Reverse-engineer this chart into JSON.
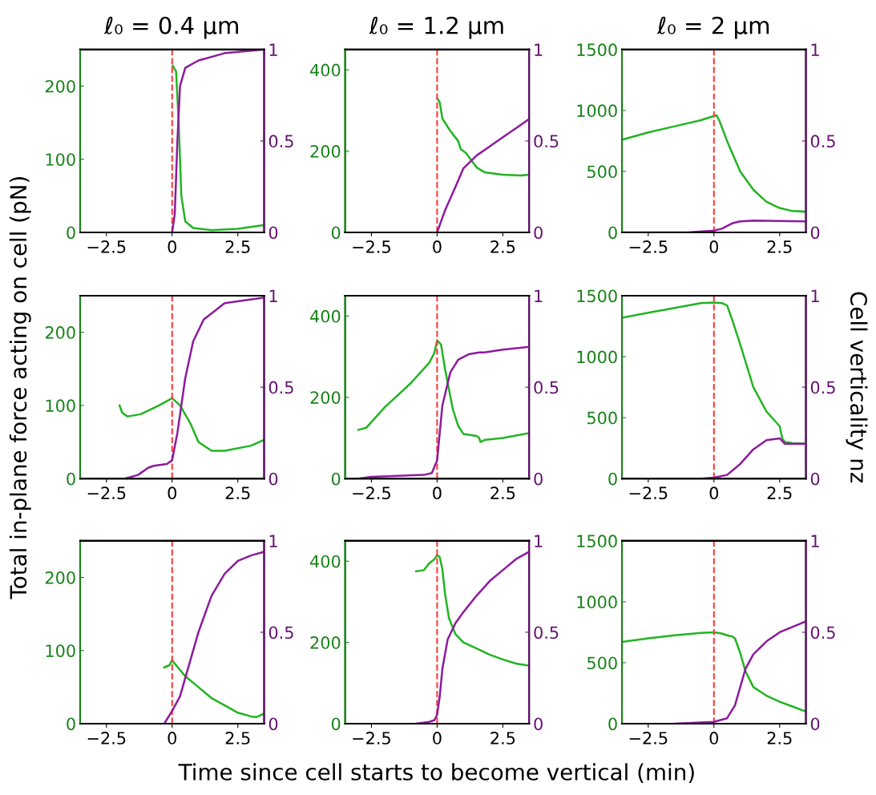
{
  "chart_data": [
    {
      "type": "line",
      "title": "ℓ₀ = 0.4 μm",
      "xlim": [
        -3.5,
        3.5
      ],
      "xticks": [
        -2.5,
        0,
        2.5
      ],
      "ylim": [
        0,
        250
      ],
      "yticks": [
        0,
        100,
        200
      ],
      "y2lim": [
        0,
        1
      ],
      "y2ticks": [
        0,
        0.5,
        1
      ],
      "ref_lines": [
        {
          "axis": "x",
          "value": 0,
          "color": "#ff3b3b",
          "line_style": "dashed"
        }
      ],
      "series": [
        {
          "color": "#22b422",
          "x": [
            0.02,
            0.15,
            0.25,
            0.35,
            0.5,
            0.8,
            1.5,
            2.5,
            3.5
          ],
          "values": [
            228,
            220,
            150,
            50,
            15,
            6,
            3,
            5,
            10
          ]
        },
        {
          "color": "#8e1a9e",
          "axis": "y2",
          "x": [
            0,
            0.1,
            0.2,
            0.3,
            0.5,
            1,
            2,
            3.5
          ],
          "values": [
            0,
            0.1,
            0.5,
            0.8,
            0.9,
            0.94,
            0.98,
            1.0
          ]
        }
      ]
    },
    {
      "type": "line",
      "title": "ℓ₀ = 1.2 μm",
      "xlim": [
        -3.5,
        3.5
      ],
      "xticks": [
        -2.5,
        0,
        2.5
      ],
      "ylim": [
        0,
        450
      ],
      "yticks": [
        0,
        200,
        400
      ],
      "y2lim": [
        0,
        1
      ],
      "y2ticks": [
        0,
        0.5,
        1
      ],
      "ref_lines": [
        {
          "axis": "x",
          "value": 0,
          "color": "#ff3b3b",
          "line_style": "dashed"
        }
      ],
      "series": [
        {
          "color": "#22b422",
          "x": [
            0,
            0.1,
            0.2,
            0.5,
            0.8,
            0.9,
            1.1,
            1.5,
            1.8,
            2.5,
            3.2,
            3.5
          ],
          "values": [
            330,
            320,
            280,
            250,
            225,
            205,
            195,
            160,
            148,
            142,
            140,
            142
          ]
        },
        {
          "color": "#8e1a9e",
          "axis": "y2",
          "x": [
            0,
            0.3,
            0.7,
            1.0,
            1.5,
            2.0,
            2.5,
            3.0,
            3.5
          ],
          "values": [
            0,
            0.12,
            0.25,
            0.35,
            0.42,
            0.47,
            0.52,
            0.57,
            0.62
          ]
        }
      ]
    },
    {
      "type": "line",
      "title": "ℓ₀ = 2 μm",
      "xlim": [
        -3.5,
        3.5
      ],
      "xticks": [
        -2.5,
        0,
        2.5
      ],
      "ylim": [
        0,
        1500
      ],
      "yticks": [
        0,
        500,
        1000,
        1500
      ],
      "y2lim": [
        0,
        1
      ],
      "y2ticks": [
        0,
        0.5,
        1
      ],
      "ref_lines": [
        {
          "axis": "x",
          "value": 0,
          "color": "#ff3b3b",
          "line_style": "dashed"
        }
      ],
      "series": [
        {
          "color": "#22b422",
          "x": [
            -3.5,
            -2.5,
            -1.5,
            -0.5,
            0,
            0.1,
            0.2,
            0.5,
            1.0,
            1.5,
            2.0,
            2.5,
            3.0,
            3.5
          ],
          "values": [
            760,
            820,
            870,
            920,
            955,
            960,
            920,
            750,
            500,
            350,
            250,
            200,
            175,
            170
          ]
        },
        {
          "color": "#8e1a9e",
          "axis": "y2",
          "x": [
            -3.5,
            -1,
            0,
            0.3,
            0.7,
            1.0,
            1.5,
            3.5
          ],
          "values": [
            0,
            0,
            0.01,
            0.02,
            0.05,
            0.06,
            0.065,
            0.06
          ]
        }
      ]
    },
    {
      "type": "line",
      "ylabel": "Total in-plane force acting on cell (pN)",
      "xlim": [
        -3.5,
        3.5
      ],
      "xticks": [
        -2.5,
        0,
        2.5
      ],
      "ylim": [
        0,
        250
      ],
      "yticks": [
        0,
        100,
        200
      ],
      "y2lim": [
        0,
        1
      ],
      "y2ticks": [
        0,
        0.5,
        1
      ],
      "ref_lines": [
        {
          "axis": "x",
          "value": 0,
          "color": "#ff3b3b",
          "line_style": "dashed"
        }
      ],
      "series": [
        {
          "color": "#22b422",
          "x": [
            -2.0,
            -1.9,
            -1.7,
            -1.2,
            -0.5,
            0,
            0.3,
            0.7,
            1.0,
            1.5,
            2.0,
            3.0,
            3.5
          ],
          "values": [
            100,
            90,
            85,
            88,
            100,
            110,
            100,
            75,
            50,
            38,
            38,
            45,
            53
          ]
        },
        {
          "color": "#8e1a9e",
          "axis": "y2",
          "x": [
            -1.8,
            -1.3,
            -0.9,
            -0.7,
            -0.2,
            0,
            0.2,
            0.5,
            0.8,
            1.2,
            2,
            3.5
          ],
          "values": [
            0,
            0.02,
            0.06,
            0.07,
            0.08,
            0.1,
            0.25,
            0.55,
            0.75,
            0.87,
            0.96,
            0.99
          ]
        }
      ]
    },
    {
      "type": "line",
      "xlim": [
        -3.5,
        3.5
      ],
      "xticks": [
        -2.5,
        0,
        2.5
      ],
      "ylim": [
        0,
        450
      ],
      "yticks": [
        0,
        200,
        400
      ],
      "y2lim": [
        0,
        1
      ],
      "y2ticks": [
        0,
        0.5,
        1
      ],
      "ref_lines": [
        {
          "axis": "x",
          "value": 0,
          "color": "#ff3b3b",
          "line_style": "dashed"
        }
      ],
      "series": [
        {
          "color": "#22b422",
          "x": [
            -3,
            -2.7,
            -2,
            -1,
            -0.3,
            -0.1,
            0,
            0.15,
            0.3,
            0.6,
            0.8,
            1.0,
            1.5,
            1.6,
            1.65,
            1.8,
            2.5,
            3.5
          ],
          "values": [
            120,
            125,
            175,
            235,
            285,
            310,
            340,
            330,
            270,
            170,
            130,
            110,
            105,
            100,
            90,
            95,
            100,
            112
          ]
        },
        {
          "color": "#8e1a9e",
          "axis": "y2",
          "x": [
            -3,
            -2.5,
            -0.5,
            -0.2,
            0,
            0.2,
            0.5,
            0.8,
            1.2,
            1.6,
            1.8,
            2.5,
            3.5
          ],
          "values": [
            0,
            0.01,
            0.02,
            0.03,
            0.1,
            0.4,
            0.58,
            0.65,
            0.68,
            0.69,
            0.69,
            0.705,
            0.72
          ]
        }
      ]
    },
    {
      "type": "line",
      "y2label": "Cell verticality nz",
      "xlim": [
        -3.5,
        3.5
      ],
      "xticks": [
        -2.5,
        0,
        2.5
      ],
      "ylim": [
        0,
        1500
      ],
      "yticks": [
        0,
        500,
        1000,
        1500
      ],
      "y2lim": [
        0,
        1
      ],
      "y2ticks": [
        0,
        0.5,
        1
      ],
      "ref_lines": [
        {
          "axis": "x",
          "value": 0,
          "color": "#ff3b3b",
          "line_style": "dashed"
        }
      ],
      "series": [
        {
          "color": "#22b422",
          "x": [
            -3.5,
            -2.5,
            -1.5,
            -0.5,
            0,
            0.3,
            0.5,
            0.7,
            1.0,
            1.5,
            2.0,
            2.5,
            2.6,
            2.7,
            3.0,
            3.5
          ],
          "values": [
            1320,
            1360,
            1400,
            1440,
            1445,
            1440,
            1420,
            1300,
            1100,
            750,
            550,
            430,
            330,
            300,
            290,
            285
          ]
        },
        {
          "color": "#8e1a9e",
          "axis": "y2",
          "x": [
            -0.5,
            0,
            0.5,
            1.0,
            1.5,
            2.0,
            2.5,
            2.7,
            3.0,
            3.5
          ],
          "values": [
            0,
            0.005,
            0.02,
            0.08,
            0.16,
            0.21,
            0.22,
            0.19,
            0.19,
            0.19
          ]
        }
      ]
    },
    {
      "type": "line",
      "xlim": [
        -3.5,
        3.5
      ],
      "xticks": [
        -2.5,
        0,
        2.5
      ],
      "ylim": [
        0,
        250
      ],
      "yticks": [
        0,
        100,
        200
      ],
      "y2lim": [
        0,
        1
      ],
      "y2ticks": [
        0,
        0.5,
        1
      ],
      "ref_lines": [
        {
          "axis": "x",
          "value": 0,
          "color": "#ff3b3b",
          "line_style": "dashed"
        }
      ],
      "series": [
        {
          "color": "#22b422",
          "x": [
            -0.3,
            -0.1,
            0,
            0.1,
            0.5,
            1,
            1.5,
            2,
            2.5,
            3.0,
            3.2,
            3.5
          ],
          "values": [
            77,
            80,
            87,
            82,
            65,
            50,
            35,
            25,
            15,
            10,
            9,
            14
          ]
        },
        {
          "color": "#8e1a9e",
          "axis": "y2",
          "x": [
            -0.3,
            0,
            0.3,
            0.7,
            1.0,
            1.5,
            2.0,
            2.5,
            3.0,
            3.5
          ],
          "values": [
            0,
            0.07,
            0.15,
            0.35,
            0.5,
            0.7,
            0.82,
            0.89,
            0.92,
            0.94
          ]
        }
      ]
    },
    {
      "type": "line",
      "xlabel": "Time since cell starts to become vertical (min)",
      "xlim": [
        -3.5,
        3.5
      ],
      "xticks": [
        -2.5,
        0,
        2.5
      ],
      "ylim": [
        0,
        450
      ],
      "yticks": [
        0,
        200,
        400
      ],
      "y2lim": [
        0,
        1
      ],
      "y2ticks": [
        0,
        0.5,
        1
      ],
      "ref_lines": [
        {
          "axis": "x",
          "value": 0,
          "color": "#ff3b3b",
          "line_style": "dashed"
        }
      ],
      "series": [
        {
          "color": "#22b422",
          "x": [
            -0.8,
            -0.5,
            -0.3,
            -0.1,
            0,
            0.1,
            0.2,
            0.3,
            0.45,
            0.7,
            1.0,
            1.5,
            2.0,
            2.5,
            3.0,
            3.5
          ],
          "values": [
            375,
            378,
            395,
            405,
            415,
            410,
            380,
            320,
            260,
            220,
            200,
            185,
            170,
            158,
            148,
            143
          ]
        },
        {
          "color": "#8e1a9e",
          "axis": "y2",
          "x": [
            -0.8,
            -0.3,
            -0.1,
            0,
            0.1,
            0.2,
            0.4,
            0.7,
            1.0,
            1.5,
            2.0,
            2.5,
            3.0,
            3.5
          ],
          "values": [
            0,
            0.01,
            0.02,
            0.05,
            0.15,
            0.3,
            0.46,
            0.55,
            0.61,
            0.7,
            0.78,
            0.84,
            0.9,
            0.94
          ]
        }
      ]
    },
    {
      "type": "line",
      "xlim": [
        -3.5,
        3.5
      ],
      "xticks": [
        -2.5,
        0,
        2.5
      ],
      "ylim": [
        0,
        1500
      ],
      "yticks": [
        0,
        500,
        1000,
        1500
      ],
      "y2lim": [
        0,
        1
      ],
      "y2ticks": [
        0,
        0.5,
        1
      ],
      "ref_lines": [
        {
          "axis": "x",
          "value": 0,
          "color": "#ff3b3b",
          "line_style": "dashed"
        }
      ],
      "series": [
        {
          "color": "#22b422",
          "x": [
            -3.5,
            -2.5,
            -1.5,
            -0.5,
            0,
            0.3,
            0.5,
            0.7,
            0.8,
            1.0,
            1.2,
            1.5,
            2.0,
            2.5,
            3.0,
            3.5
          ],
          "values": [
            670,
            700,
            725,
            745,
            750,
            740,
            725,
            715,
            700,
            580,
            430,
            300,
            230,
            180,
            140,
            100
          ]
        },
        {
          "color": "#8e1a9e",
          "axis": "y2",
          "x": [
            -1.5,
            0,
            0.5,
            0.8,
            1.0,
            1.2,
            1.5,
            2.0,
            2.5,
            3.0,
            3.5
          ],
          "values": [
            0,
            0.01,
            0.03,
            0.1,
            0.2,
            0.3,
            0.38,
            0.45,
            0.5,
            0.53,
            0.56
          ]
        }
      ]
    }
  ]
}
